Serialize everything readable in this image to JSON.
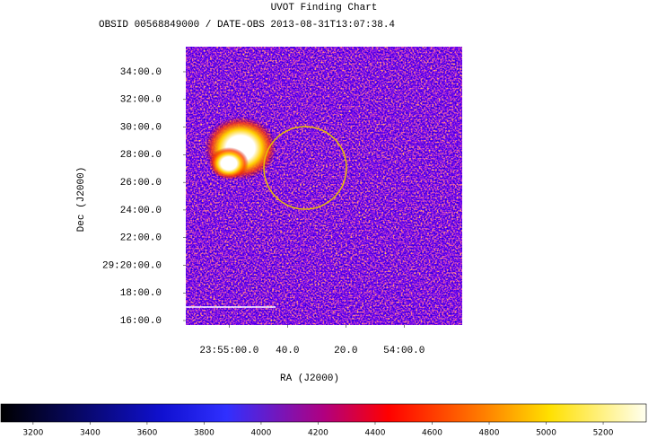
{
  "chart_data": {
    "type": "image",
    "title": "UVOT Finding Chart",
    "subtitle": "OBSID 00568849000 / DATE-OBS 2013-08-31T13:07:38.4",
    "x_label": "RA (J2000)",
    "y_label": "Dec (J2000)",
    "xlim": [
      358.812,
      358.417
    ],
    "xticks": [
      {
        "value": 358.75,
        "label": "23:55:00.0"
      },
      {
        "value": 358.6667,
        "label": "40.0"
      },
      {
        "value": 358.5833,
        "label": "20.0"
      },
      {
        "value": 358.5,
        "label": "54:00.0"
      }
    ],
    "ylim": [
      29.2613,
      29.597
    ],
    "yticks": [
      {
        "value": 29.5667,
        "label": "34:00.0"
      },
      {
        "value": 29.5333,
        "label": "32:00.0"
      },
      {
        "value": 29.5,
        "label": "30:00.0"
      },
      {
        "value": 29.4667,
        "label": "28:00.0"
      },
      {
        "value": 29.4333,
        "label": "26:00.0"
      },
      {
        "value": 29.4,
        "label": "24:00.0"
      },
      {
        "value": 29.3667,
        "label": "22:00.0"
      },
      {
        "value": 29.3333,
        "label": "29:20:00.0"
      },
      {
        "value": 29.3,
        "label": "18:00.0"
      },
      {
        "value": 29.2667,
        "label": "16:00.0"
      }
    ],
    "colorbar_lim": [
      3087,
      5351
    ],
    "colorbar_ticks": [
      3200,
      3400,
      3600,
      3800,
      4000,
      4200,
      4400,
      4600,
      4800,
      5000,
      5200
    ]
  }
}
